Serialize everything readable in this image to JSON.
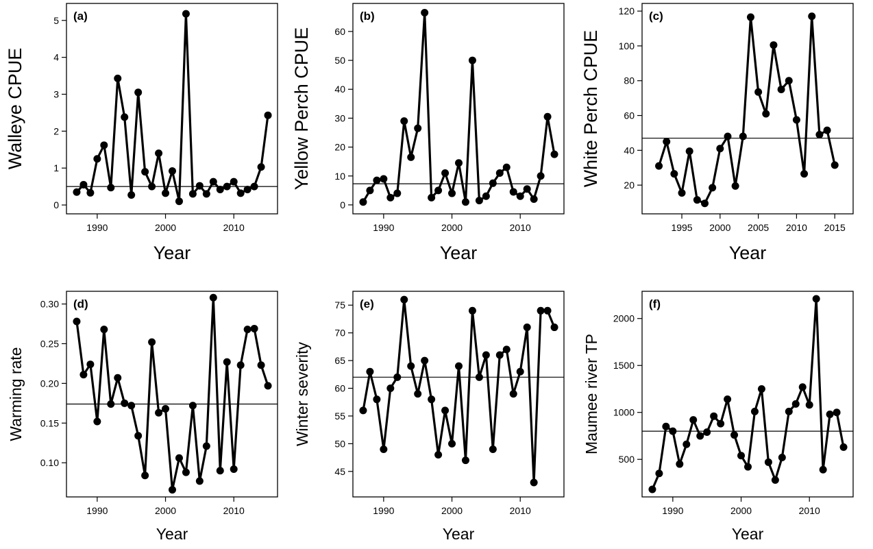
{
  "chart_data": [
    {
      "type": "line",
      "panel_label": "(a)",
      "ylabel": "Walleye CPUE",
      "xlabel": "Year",
      "x": [
        1987,
        1988,
        1989,
        1990,
        1991,
        1992,
        1993,
        1994,
        1995,
        1996,
        1997,
        1998,
        1999,
        2000,
        2001,
        2002,
        2003,
        2004,
        2005,
        2006,
        2007,
        2008,
        2009,
        2010,
        2011,
        2012,
        2013,
        2014,
        2015
      ],
      "series": [
        {
          "color": "#000000",
          "values": [
            0.35,
            0.55,
            0.33,
            1.25,
            1.62,
            0.47,
            3.43,
            2.38,
            0.27,
            3.05,
            0.9,
            0.5,
            1.4,
            0.32,
            0.92,
            0.1,
            5.18,
            0.3,
            0.52,
            0.3,
            0.63,
            0.42,
            0.5,
            0.63,
            0.32,
            0.42,
            0.5,
            1.03,
            2.43
          ]
        }
      ],
      "hline": 0.5,
      "xlim": [
        1985.5,
        2016.4
      ],
      "ylim": [
        -0.24,
        5.46
      ],
      "xticks": [
        1990,
        2000,
        2010
      ],
      "yticks": [
        0,
        1,
        2,
        3,
        4,
        5
      ]
    },
    {
      "type": "line",
      "panel_label": "(b)",
      "ylabel": "Yellow Perch CPUE",
      "xlabel": "Year",
      "x": [
        1987,
        1988,
        1989,
        1990,
        1991,
        1992,
        1993,
        1994,
        1995,
        1996,
        1997,
        1998,
        1999,
        2000,
        2001,
        2002,
        2003,
        2004,
        2005,
        2006,
        2007,
        2008,
        2009,
        2010,
        2011,
        2012,
        2013,
        2014,
        2015
      ],
      "series": [
        {
          "color": "#000000",
          "values": [
            1,
            5,
            8.5,
            9,
            2.5,
            4,
            29,
            16.5,
            26.5,
            66.5,
            2.5,
            5,
            11,
            4,
            14.5,
            1,
            50,
            1.5,
            3,
            7.5,
            11,
            13,
            4.5,
            3,
            5.5,
            2,
            10,
            30.5,
            17.5
          ]
        }
      ],
      "hline": 7.3,
      "xlim": [
        1985.5,
        2016.4
      ],
      "ylim": [
        -3.1,
        69.7
      ],
      "xticks": [
        1990,
        2000,
        2010
      ],
      "yticks": [
        0,
        10,
        20,
        30,
        40,
        50,
        60
      ]
    },
    {
      "type": "line",
      "panel_label": "(c)",
      "ylabel": "White Perch CPUE",
      "xlabel": "Year",
      "x": [
        1992,
        1993,
        1994,
        1995,
        1996,
        1997,
        1998,
        1999,
        2000,
        2001,
        2002,
        2003,
        2004,
        2005,
        2006,
        2007,
        2008,
        2009,
        2010,
        2011,
        2012,
        2013,
        2014,
        2015
      ],
      "series": [
        {
          "color": "#000000",
          "values": [
            31,
            45,
            26.5,
            15.5,
            39.5,
            11.5,
            9.5,
            18.5,
            41,
            48,
            19.5,
            48,
            116.5,
            73.5,
            61,
            100.5,
            75,
            80,
            57.5,
            26.5,
            117,
            49,
            51.5,
            31.5
          ]
        }
      ],
      "hline": 47,
      "xlim": [
        1989.8,
        2017.4
      ],
      "ylim": [
        3.5,
        124.4
      ],
      "xticks": [
        1995,
        2000,
        2005,
        2010,
        2015
      ],
      "yticks": [
        20,
        40,
        60,
        80,
        100,
        120
      ]
    },
    {
      "type": "line",
      "panel_label": "(d)",
      "ylabel": "Warming rate",
      "xlabel": "Year",
      "x": [
        1987,
        1988,
        1989,
        1990,
        1991,
        1992,
        1993,
        1994,
        1995,
        1996,
        1997,
        1998,
        1999,
        2000,
        2001,
        2002,
        2003,
        2004,
        2005,
        2006,
        2007,
        2008,
        2009,
        2010,
        2011,
        2012,
        2013,
        2014,
        2015
      ],
      "series": [
        {
          "color": "#000000",
          "values": [
            0.278,
            0.211,
            0.224,
            0.152,
            0.268,
            0.174,
            0.207,
            0.175,
            0.172,
            0.134,
            0.084,
            0.252,
            0.163,
            0.168,
            0.066,
            0.106,
            0.088,
            0.172,
            0.077,
            0.121,
            0.308,
            0.09,
            0.227,
            0.092,
            0.223,
            0.268,
            0.269,
            0.223,
            0.197
          ]
        }
      ],
      "hline": 0.174,
      "xlim": [
        1985.5,
        2016.4
      ],
      "ylim": [
        0.057,
        0.316
      ],
      "xticks": [
        1990,
        2000,
        2010
      ],
      "yticks": [
        {
          "value": 0.1,
          "label": "0.10"
        },
        0.15,
        {
          "value": 0.2,
          "label": "0.20"
        },
        0.25,
        {
          "value": 0.3,
          "label": "0.30"
        }
      ]
    },
    {
      "type": "line",
      "panel_label": "(e)",
      "ylabel": "Winter severity",
      "xlabel": "Year",
      "x": [
        1987,
        1988,
        1989,
        1990,
        1991,
        1992,
        1993,
        1994,
        1995,
        1996,
        1997,
        1998,
        1999,
        2000,
        2001,
        2002,
        2003,
        2004,
        2005,
        2006,
        2007,
        2008,
        2009,
        2010,
        2011,
        2012,
        2013,
        2014,
        2015
      ],
      "series": [
        {
          "color": "#000000",
          "values": [
            56,
            63,
            58,
            49,
            60,
            62,
            76,
            64,
            59,
            65,
            58,
            48,
            56,
            50,
            64,
            47,
            74,
            62,
            66,
            49,
            66,
            67,
            59,
            63,
            71,
            43,
            74,
            74,
            71
          ]
        }
      ],
      "hline": 62,
      "xlim": [
        1985.5,
        2016.4
      ],
      "ylim": [
        40.4,
        77.5
      ],
      "xticks": [
        1990,
        2000,
        2010
      ],
      "yticks": [
        45,
        50,
        55,
        60,
        65,
        70,
        75
      ]
    },
    {
      "type": "line",
      "panel_label": "(f)",
      "ylabel": "Maumee river TP",
      "xlabel": "Year",
      "x": [
        1987,
        1988,
        1989,
        1990,
        1991,
        1992,
        1993,
        1994,
        1995,
        1996,
        1997,
        1998,
        1999,
        2000,
        2001,
        2002,
        2003,
        2004,
        2005,
        2006,
        2007,
        2008,
        2009,
        2010,
        2011,
        2012,
        2013,
        2014,
        2015
      ],
      "series": [
        {
          "color": "#000000",
          "values": [
            180,
            350,
            850,
            800,
            450,
            660,
            920,
            750,
            790,
            960,
            880,
            1140,
            760,
            540,
            420,
            1010,
            1250,
            470,
            280,
            520,
            1010,
            1090,
            1270,
            1080,
            2210,
            390,
            980,
            1000,
            630
          ]
        }
      ],
      "hline": 800,
      "xlim": [
        1985.5,
        2016.4
      ],
      "ylim": [
        100,
        2290
      ],
      "xticks": [
        1990,
        2000,
        2010
      ],
      "yticks": [
        500,
        1000,
        1500,
        2000
      ]
    }
  ]
}
